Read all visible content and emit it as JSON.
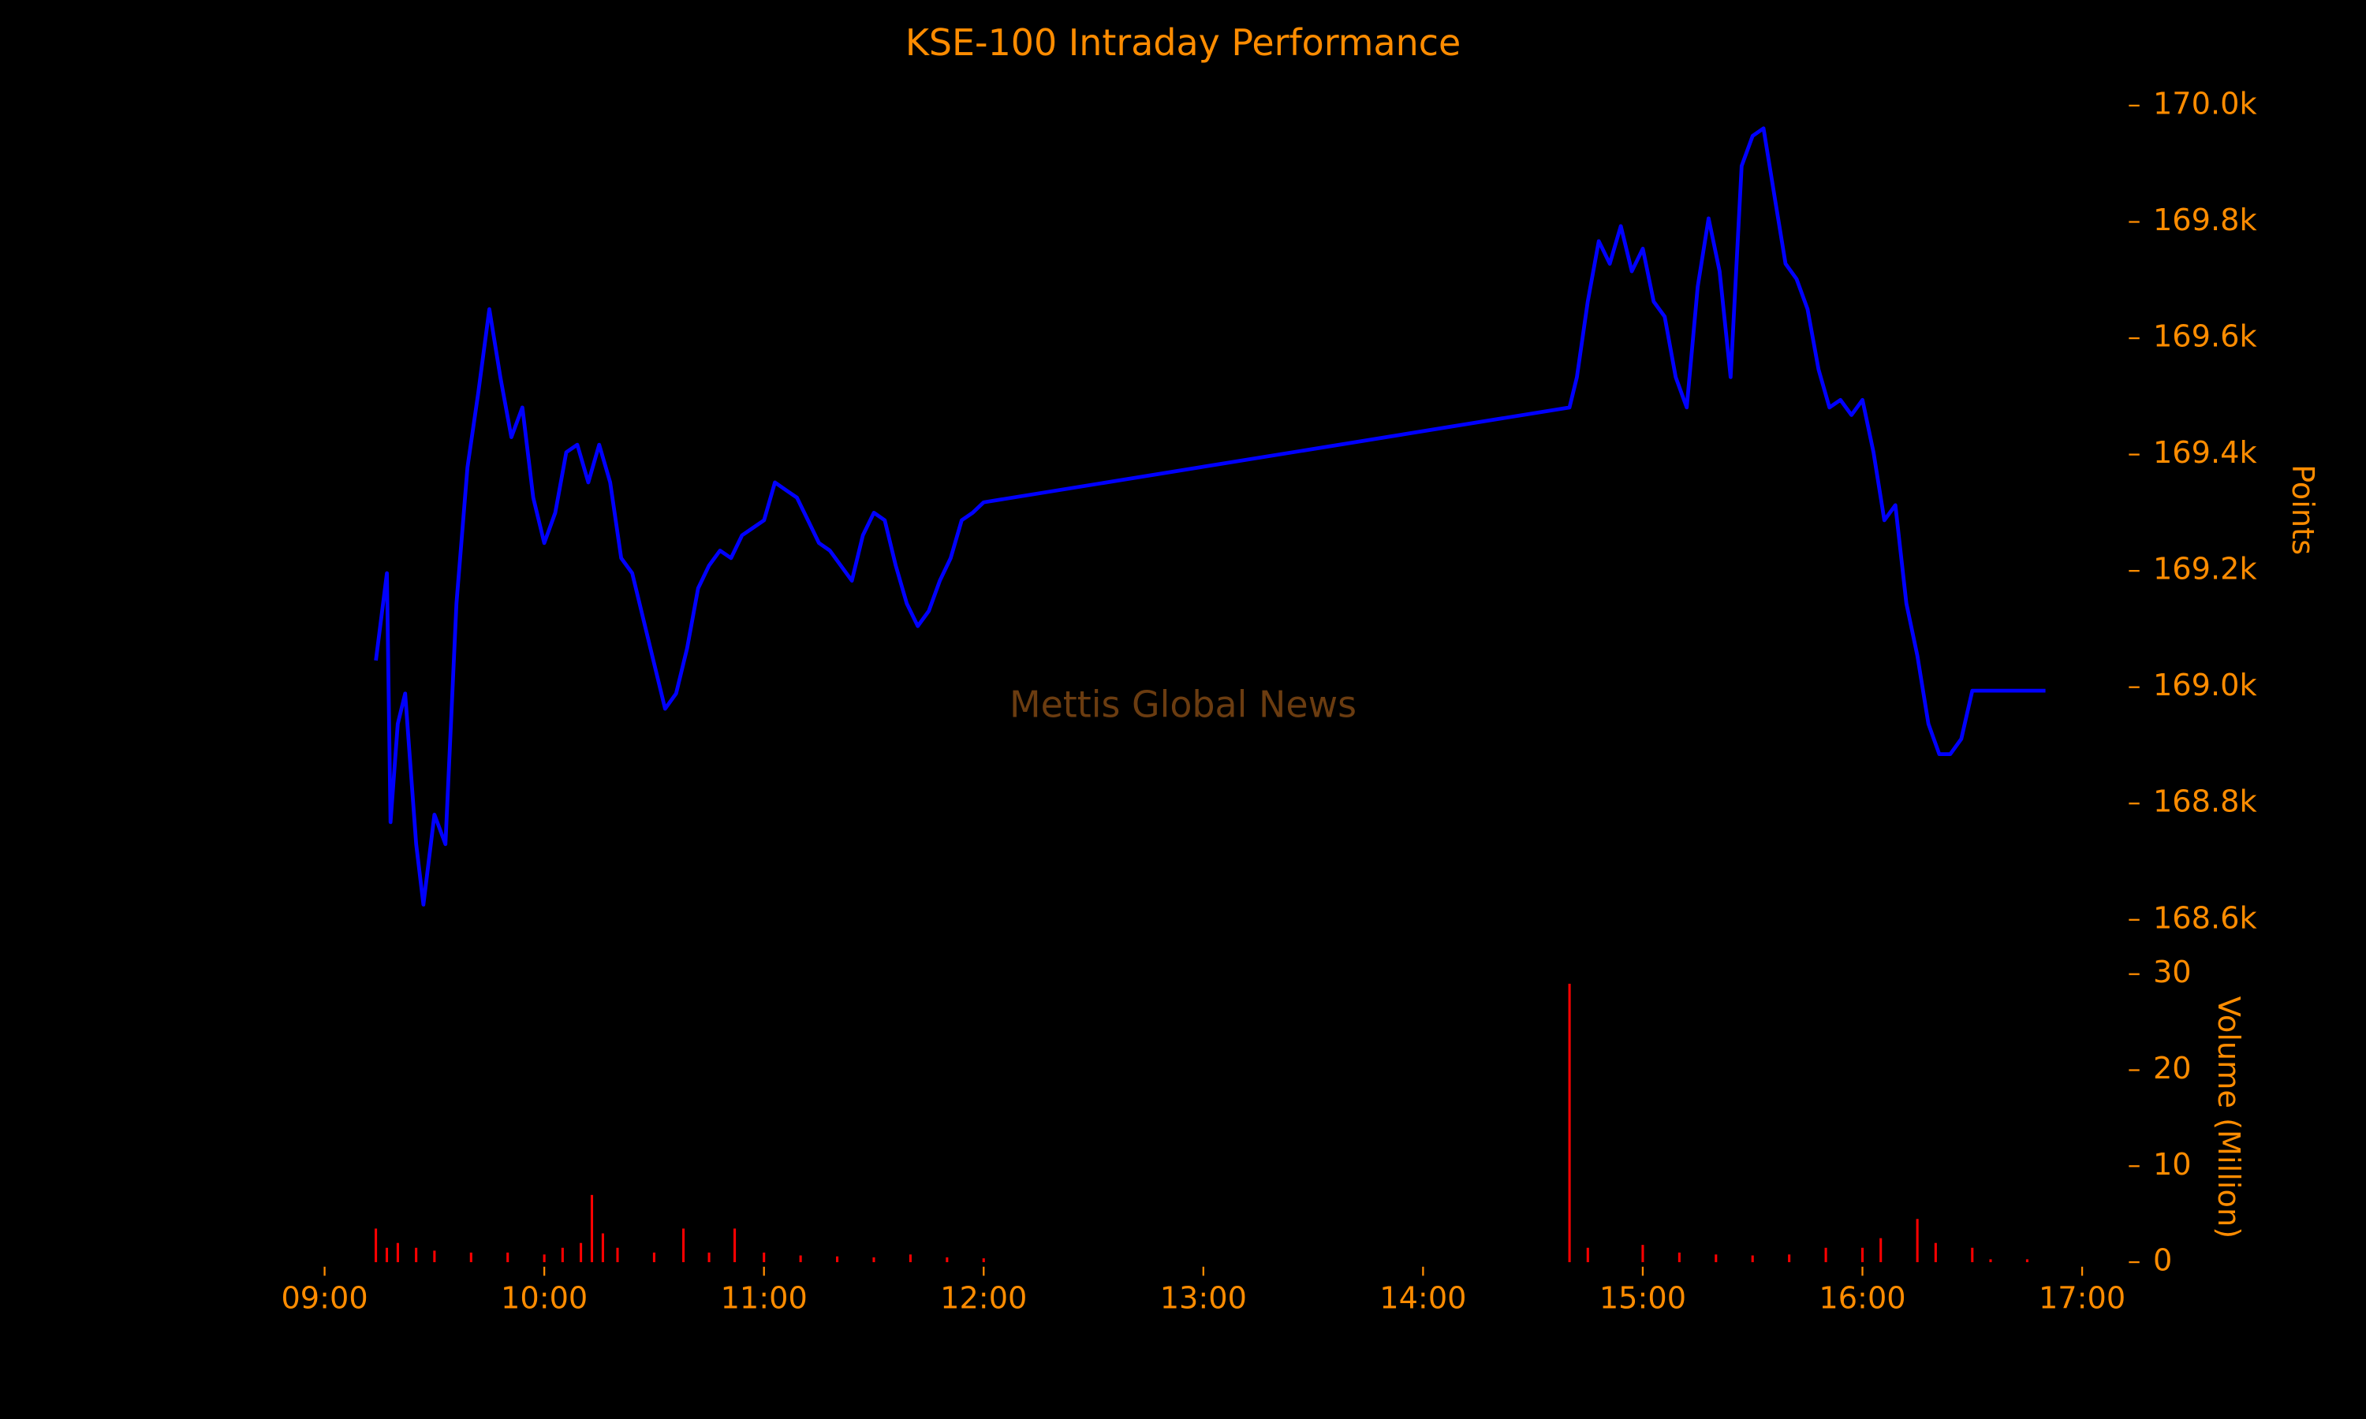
{
  "chart_data": [
    {
      "type": "line",
      "title": "KSE-100 Intraday Performance",
      "annotation": "Mettis Global News",
      "ylabel": "Points",
      "color": "blue",
      "x": [
        "09:14",
        "09:17",
        "09:18",
        "09:20",
        "09:22",
        "09:25",
        "09:27",
        "09:30",
        "09:33",
        "09:36",
        "09:39",
        "09:42",
        "09:45",
        "09:48",
        "09:51",
        "09:54",
        "09:57",
        "10:00",
        "10:03",
        "10:06",
        "10:09",
        "10:12",
        "10:15",
        "10:18",
        "10:21",
        "10:24",
        "10:27",
        "10:30",
        "10:33",
        "10:36",
        "10:39",
        "10:42",
        "10:45",
        "10:48",
        "10:51",
        "10:54",
        "10:57",
        "11:00",
        "11:03",
        "11:06",
        "11:09",
        "11:12",
        "11:15",
        "11:18",
        "11:21",
        "11:24",
        "11:27",
        "11:30",
        "11:33",
        "11:36",
        "11:39",
        "11:42",
        "11:45",
        "11:48",
        "11:51",
        "11:54",
        "11:57",
        "12:00",
        "14:40",
        "14:42",
        "14:45",
        "14:48",
        "14:51",
        "14:54",
        "14:57",
        "15:00",
        "15:03",
        "15:06",
        "15:09",
        "15:12",
        "15:15",
        "15:18",
        "15:21",
        "15:24",
        "15:27",
        "15:30",
        "15:33",
        "15:36",
        "15:39",
        "15:42",
        "15:45",
        "15:48",
        "15:51",
        "15:54",
        "15:57",
        "16:00",
        "16:03",
        "16:06",
        "16:09",
        "16:12",
        "16:15",
        "16:18",
        "16:21",
        "16:24",
        "16:27",
        "16:30",
        "16:50"
      ],
      "values": [
        169046,
        169196,
        168768,
        168937,
        168989,
        168730,
        168626,
        168781,
        168730,
        169144,
        169378,
        169507,
        169650,
        169533,
        169430,
        169481,
        169326,
        169248,
        169300,
        169404,
        169417,
        169352,
        169417,
        169352,
        169222,
        169196,
        169118,
        169041,
        168963,
        168989,
        169067,
        169170,
        169209,
        169235,
        169222,
        169261,
        169274,
        169287,
        169352,
        169339,
        169326,
        169287,
        169248,
        169235,
        169209,
        169183,
        169261,
        169300,
        169287,
        169209,
        169144,
        169105,
        169131,
        169183,
        169222,
        169287,
        169300,
        169318,
        169481,
        169533,
        169663,
        169767,
        169728,
        169793,
        169715,
        169754,
        169663,
        169637,
        169533,
        169481,
        169689,
        169806,
        169715,
        169533,
        169896,
        169948,
        169961,
        169844,
        169728,
        169702,
        169650,
        169546,
        169481,
        169494,
        169468,
        169494,
        169404,
        169287,
        169313,
        169144,
        169054,
        168937,
        168885,
        168885,
        168911,
        168994,
        168994
      ],
      "xlim": [
        "09:00",
        "17:00"
      ],
      "ylim": [
        168560,
        170040
      ],
      "yticks": [
        {
          "value": 168600,
          "label": "168.6k"
        },
        {
          "value": 168800,
          "label": "168.8k"
        },
        {
          "value": 169000,
          "label": "169.0k"
        },
        {
          "value": 169200,
          "label": "169.2k"
        },
        {
          "value": 169400,
          "label": "169.4k"
        },
        {
          "value": 169600,
          "label": "169.6k"
        },
        {
          "value": 169800,
          "label": "169.8k"
        },
        {
          "value": 170000,
          "label": "170.0k"
        }
      ]
    },
    {
      "type": "bar",
      "ylabel": "Volume (Million)",
      "color": "red",
      "x": [
        "09:14",
        "09:17",
        "09:20",
        "09:25",
        "09:30",
        "09:40",
        "09:50",
        "10:00",
        "10:05",
        "10:10",
        "10:13",
        "10:16",
        "10:20",
        "10:30",
        "10:38",
        "10:45",
        "10:52",
        "11:00",
        "11:10",
        "11:20",
        "11:30",
        "11:40",
        "11:50",
        "12:00",
        "14:40",
        "14:45",
        "15:00",
        "15:10",
        "15:20",
        "15:30",
        "15:40",
        "15:50",
        "16:00",
        "16:05",
        "16:15",
        "16:20",
        "16:30",
        "16:35",
        "16:45"
      ],
      "values": [
        3.5,
        1.5,
        2,
        1.5,
        1.2,
        1,
        1,
        0.8,
        1.5,
        2,
        7,
        3,
        1.5,
        1,
        3.5,
        1,
        3.5,
        1,
        0.7,
        0.6,
        0.5,
        0.8,
        0.5,
        0.4,
        29,
        1.5,
        1.8,
        1,
        0.8,
        0.7,
        0.8,
        1.5,
        1.5,
        2.5,
        4.5,
        2,
        1.5,
        0.3,
        0.3
      ],
      "xlim": [
        "09:00",
        "17:00"
      ],
      "ylim": [
        0,
        30
      ],
      "yticks": [
        0,
        10,
        20,
        30
      ],
      "xticks": [
        "09:00",
        "10:00",
        "11:00",
        "12:00",
        "13:00",
        "14:00",
        "15:00",
        "16:00",
        "17:00"
      ]
    }
  ]
}
